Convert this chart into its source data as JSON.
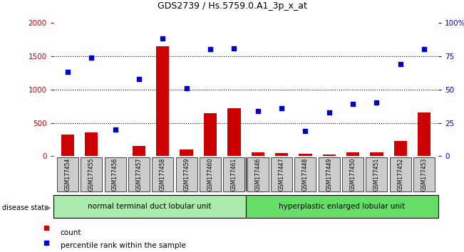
{
  "title": "GDS2739 / Hs.5759.0.A1_3p_x_at",
  "samples": [
    "GSM177454",
    "GSM177455",
    "GSM177456",
    "GSM177457",
    "GSM177458",
    "GSM177459",
    "GSM177460",
    "GSM177461",
    "GSM177446",
    "GSM177447",
    "GSM177448",
    "GSM177449",
    "GSM177450",
    "GSM177451",
    "GSM177452",
    "GSM177453"
  ],
  "counts": [
    320,
    360,
    10,
    155,
    1650,
    105,
    640,
    720,
    55,
    50,
    35,
    30,
    60,
    55,
    230,
    660
  ],
  "percentiles": [
    63,
    74,
    20,
    58,
    88,
    51,
    80,
    81,
    34,
    36,
    19,
    33,
    39,
    40,
    69,
    80
  ],
  "group1_label": "normal terminal duct lobular unit",
  "group2_label": "hyperplastic enlarged lobular unit",
  "group1_count": 8,
  "group2_count": 8,
  "bar_color": "#cc0000",
  "dot_color": "#0000cc",
  "left_ylim": [
    0,
    2000
  ],
  "right_ylim": [
    0,
    100
  ],
  "left_yticks": [
    0,
    500,
    1000,
    1500,
    2000
  ],
  "right_yticks": [
    0,
    25,
    50,
    75,
    100
  ],
  "right_yticklabels": [
    "0",
    "25",
    "50",
    "75",
    "100%"
  ],
  "dotted_grid_vals": [
    500,
    1000,
    1500
  ],
  "background_color": "#ffffff",
  "group1_color": "#aaeaaa",
  "group2_color": "#66dd66",
  "xticklabel_bg": "#cccccc",
  "legend_count_label": "count",
  "legend_pct_label": "percentile rank within the sample"
}
